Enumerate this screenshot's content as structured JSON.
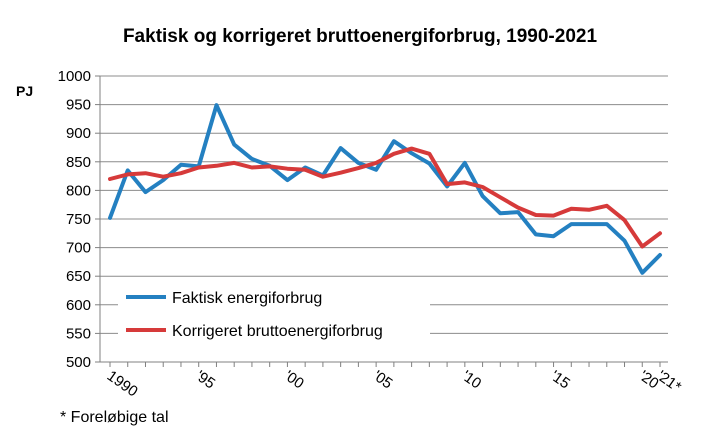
{
  "chart_data": {
    "type": "line",
    "title": "Faktisk og korrigeret bruttoenergiforbrug, 1990-2021",
    "ylabel": "PJ",
    "xlabel": "",
    "footnote": "* Foreløbige tal",
    "ylim": [
      500,
      1000
    ],
    "yticks": [
      500,
      550,
      600,
      650,
      700,
      750,
      800,
      850,
      900,
      950,
      1000
    ],
    "xlim": [
      1990,
      2021
    ],
    "xticks": [
      {
        "x": 1990,
        "label": "1990"
      },
      {
        "x": 1995,
        "label": "'95"
      },
      {
        "x": 2000,
        "label": "'00"
      },
      {
        "x": 2005,
        "label": "'05"
      },
      {
        "x": 2010,
        "label": "'10"
      },
      {
        "x": 2015,
        "label": "'15"
      },
      {
        "x": 2020,
        "label": "'20"
      },
      {
        "x": 2021,
        "label": "'21*"
      }
    ],
    "grid": true,
    "legend_position": "lower-left",
    "x": [
      1990,
      1991,
      1992,
      1993,
      1994,
      1995,
      1996,
      1997,
      1998,
      1999,
      2000,
      2001,
      2002,
      2003,
      2004,
      2005,
      2006,
      2007,
      2008,
      2009,
      2010,
      2011,
      2012,
      2013,
      2014,
      2015,
      2016,
      2017,
      2018,
      2019,
      2020,
      2021
    ],
    "series": [
      {
        "name": "Faktisk energiforbrug",
        "color": "#2480c1",
        "values": [
          752,
          835,
          797,
          818,
          845,
          842,
          949,
          880,
          855,
          843,
          818,
          840,
          826,
          874,
          848,
          836,
          886,
          865,
          847,
          807,
          848,
          790,
          760,
          762,
          723,
          720,
          741,
          741,
          741,
          712,
          656,
          687
        ]
      },
      {
        "name": "Korrigeret bruttoenergiforbrug",
        "color": "#d63a3a",
        "values": [
          820,
          828,
          830,
          824,
          830,
          840,
          843,
          848,
          840,
          842,
          838,
          836,
          824,
          831,
          839,
          848,
          864,
          873,
          864,
          811,
          814,
          806,
          788,
          770,
          757,
          756,
          768,
          766,
          773,
          748,
          702,
          725
        ]
      }
    ]
  }
}
